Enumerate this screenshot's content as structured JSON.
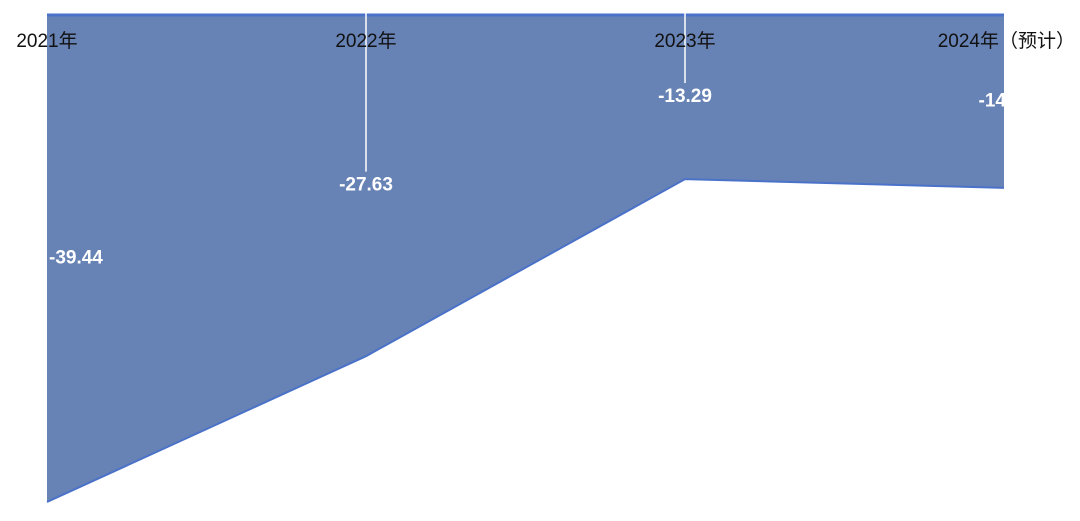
{
  "chart_data": {
    "type": "area",
    "categories": [
      "2021年",
      "2022年",
      "2023年",
      "2024年（预计）"
    ],
    "values": [
      -39.44,
      -27.63,
      -13.29,
      -14
    ],
    "color": "#6782b4",
    "line_color": "#4a72c8"
  }
}
